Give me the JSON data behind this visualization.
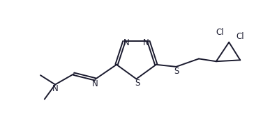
{
  "bg_color": "#ffffff",
  "line_color": "#1a1a2e",
  "line_width": 1.4,
  "font_size": 8.5,
  "figsize": [
    3.87,
    1.94
  ],
  "dpi": 100,
  "xlim": [
    0,
    10
  ],
  "ylim": [
    0,
    5
  ]
}
